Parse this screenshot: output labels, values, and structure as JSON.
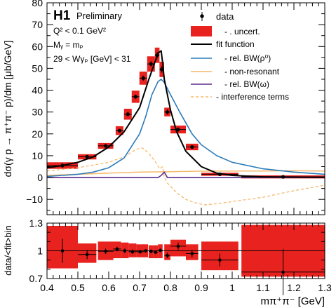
{
  "chart_data": [
    {
      "type": "line",
      "panel": "main",
      "title": "",
      "experiment": "H1",
      "status": "Preliminary",
      "annotations": [
        "Q² < 0.1 GeV²",
        "Mᵧ = mₚ",
        "29 < Wγₚ [GeV] < 31"
      ],
      "ylabel": "dσ(γ p → π⁺π⁻ p)/dm [μb/GeV]",
      "xlim": [
        0.4,
        1.3
      ],
      "ylim": [
        -17,
        80
      ],
      "yticks": [
        -10,
        0,
        10,
        20,
        30,
        40,
        50,
        60,
        70,
        80
      ],
      "legend": {
        "placement": "top-right",
        "entries": [
          {
            "label": "data",
            "style": "marker"
          },
          {
            "label": "- . uncert.",
            "style": "box",
            "color": "#e8231f"
          },
          {
            "label": "fit function",
            "style": "line",
            "color": "#000000"
          },
          {
            "label": "- rel. BW(ρ⁰)",
            "style": "line",
            "color": "#2b7bb9"
          },
          {
            "label": "- non-resonant",
            "style": "line",
            "color": "#f5b86a"
          },
          {
            "label": "- rel. BW(ω)",
            "style": "line",
            "color": "#5b2d8e"
          },
          {
            "label": "- interference terms",
            "style": "dashed",
            "color": "#f5b86a"
          }
        ]
      },
      "data_points": [
        {
          "x": 0.45,
          "y": 5.5,
          "xerr": 0.05,
          "yerr": 1.0,
          "sys": 1.5
        },
        {
          "x": 0.53,
          "y": 9.5,
          "xerr": 0.03,
          "yerr": 0.8,
          "sys": 1.2
        },
        {
          "x": 0.59,
          "y": 14.5,
          "xerr": 0.025,
          "yerr": 0.7,
          "sys": 1.3
        },
        {
          "x": 0.635,
          "y": 21.5,
          "xerr": 0.0125,
          "yerr": 0.8,
          "sys": 2.0
        },
        {
          "x": 0.662,
          "y": 29.0,
          "xerr": 0.0125,
          "yerr": 1.0,
          "sys": 2.5
        },
        {
          "x": 0.687,
          "y": 37.0,
          "xerr": 0.0125,
          "yerr": 1.0,
          "sys": 2.8
        },
        {
          "x": 0.712,
          "y": 45.5,
          "xerr": 0.0125,
          "yerr": 1.2,
          "sys": 3.0
        },
        {
          "x": 0.737,
          "y": 52.0,
          "xerr": 0.0125,
          "yerr": 1.3,
          "sys": 3.5
        },
        {
          "x": 0.757,
          "y": 56.0,
          "xerr": 0.0075,
          "yerr": 1.5,
          "sys": 3.5
        },
        {
          "x": 0.772,
          "y": 49.5,
          "xerr": 0.0075,
          "yerr": 1.5,
          "sys": 3.5
        },
        {
          "x": 0.79,
          "y": 30.0,
          "xerr": 0.01,
          "yerr": 1.2,
          "sys": 2.0
        },
        {
          "x": 0.825,
          "y": 22.0,
          "xerr": 0.025,
          "yerr": 1.0,
          "sys": 1.8
        },
        {
          "x": 0.87,
          "y": 14.0,
          "xerr": 0.02,
          "yerr": 0.8,
          "sys": 1.5
        },
        {
          "x": 0.96,
          "y": 1.5,
          "xerr": 0.06,
          "yerr": 0.5,
          "sys": 0.7
        },
        {
          "x": 1.165,
          "y": 0.3,
          "xerr": 0.135,
          "yerr": 0.4,
          "sys": 0.7
        }
      ],
      "curves": {
        "fit_function": {
          "x": [
            0.4,
            0.45,
            0.5,
            0.55,
            0.6,
            0.65,
            0.7,
            0.73,
            0.75,
            0.76,
            0.77,
            0.775,
            0.78,
            0.79,
            0.8,
            0.82,
            0.85,
            0.9,
            0.95,
            1.0,
            1.1,
            1.2,
            1.3
          ],
          "y": [
            4.5,
            5.5,
            7.0,
            9.5,
            14.0,
            21.0,
            32.0,
            45.0,
            53.0,
            57.0,
            58.0,
            52.0,
            45.0,
            38.0,
            31.0,
            21.0,
            12.0,
            5.0,
            2.0,
            1.0,
            0.3,
            0.2,
            0.1
          ]
        },
        "rel_bw_rho0": {
          "x": [
            0.4,
            0.45,
            0.5,
            0.55,
            0.6,
            0.65,
            0.7,
            0.72,
            0.74,
            0.76,
            0.77,
            0.78,
            0.8,
            0.83,
            0.87,
            0.9,
            0.95,
            1.0,
            1.1,
            1.2,
            1.3
          ],
          "y": [
            0.5,
            1.0,
            1.5,
            2.5,
            4.5,
            9.0,
            20.0,
            28.0,
            38.0,
            44.0,
            45.0,
            43.5,
            38.0,
            30.0,
            20.0,
            15.0,
            10.0,
            7.0,
            4.0,
            2.5,
            1.5
          ]
        },
        "non_resonant": {
          "x": [
            0.4,
            0.5,
            0.6,
            0.7,
            0.8,
            0.9,
            1.0,
            1.1,
            1.2,
            1.3
          ],
          "y": [
            1.0,
            1.5,
            2.0,
            2.5,
            2.7,
            2.9,
            3.0,
            3.0,
            3.1,
            3.0
          ]
        },
        "rel_bw_omega": {
          "x": [
            0.4,
            0.76,
            0.77,
            0.78,
            0.79,
            1.3
          ],
          "y": [
            0.0,
            0.0,
            1.0,
            2.5,
            0.0,
            0.0
          ]
        },
        "interference_terms": {
          "x": [
            0.4,
            0.5,
            0.6,
            0.65,
            0.69,
            0.71,
            0.73,
            0.75,
            0.765,
            0.775,
            0.78,
            0.79,
            0.8,
            0.82,
            0.85,
            0.88,
            0.91,
            0.95,
            1.0,
            1.1,
            1.2,
            1.3
          ],
          "y": [
            3.0,
            4.5,
            7.0,
            9.5,
            13.0,
            13.5,
            11.0,
            7.5,
            4.0,
            5.0,
            0.0,
            -2.5,
            -4.0,
            -7.0,
            -10.0,
            -11.5,
            -12.5,
            -12.0,
            -11.0,
            -9.0,
            -6.0,
            -3.5
          ]
        }
      }
    },
    {
      "type": "scatter",
      "panel": "ratio",
      "xlabel": "mπ⁺π⁻ [GeV]",
      "ylabel": "data/<fit>bin",
      "xlim": [
        0.4,
        1.3
      ],
      "ylim": [
        0.7,
        1.3
      ],
      "yticks": [
        0.7,
        1,
        1.3
      ],
      "xticks": [
        0.4,
        0.5,
        0.6,
        0.7,
        0.8,
        0.9,
        1,
        1.1,
        1.2,
        1.3
      ],
      "reference_line": 1,
      "points": [
        {
          "x": 0.45,
          "y": 1.0,
          "xerr": 0.05,
          "yerr": 0.13,
          "band": [
            0.81,
            1.27
          ]
        },
        {
          "x": 0.53,
          "y": 0.96,
          "xerr": 0.03,
          "yerr": 0.05,
          "band": [
            0.87,
            1.08
          ]
        },
        {
          "x": 0.59,
          "y": 0.995,
          "xerr": 0.025,
          "yerr": 0.03,
          "band": [
            0.9,
            1.1
          ]
        },
        {
          "x": 0.627,
          "y": 1.02,
          "xerr": 0.0125,
          "yerr": 0.025,
          "band": [
            0.92,
            1.1
          ]
        },
        {
          "x": 0.652,
          "y": 1.0,
          "xerr": 0.0125,
          "yerr": 0.025,
          "band": [
            0.92,
            1.09
          ]
        },
        {
          "x": 0.677,
          "y": 0.99,
          "xerr": 0.0125,
          "yerr": 0.025,
          "band": [
            0.93,
            1.08
          ]
        },
        {
          "x": 0.702,
          "y": 0.99,
          "xerr": 0.0125,
          "yerr": 0.02,
          "band": [
            0.93,
            1.07
          ]
        },
        {
          "x": 0.72,
          "y": 1.0,
          "xerr": 0.0075,
          "yerr": 0.02,
          "band": [
            0.93,
            1.07
          ]
        },
        {
          "x": 0.737,
          "y": 0.995,
          "xerr": 0.0075,
          "yerr": 0.02,
          "band": [
            0.92,
            1.06
          ]
        },
        {
          "x": 0.752,
          "y": 0.985,
          "xerr": 0.0075,
          "yerr": 0.02,
          "band": [
            0.92,
            1.06
          ]
        },
        {
          "x": 0.767,
          "y": 1.005,
          "xerr": 0.0075,
          "yerr": 0.02,
          "band": [
            0.92,
            1.07
          ]
        },
        {
          "x": 0.79,
          "y": 0.95,
          "xerr": 0.01,
          "yerr": 0.03,
          "band": [
            0.9,
            1.07
          ]
        },
        {
          "x": 0.825,
          "y": 1.05,
          "xerr": 0.025,
          "yerr": 0.04,
          "band": [
            0.94,
            1.12
          ]
        },
        {
          "x": 0.87,
          "y": 0.97,
          "xerr": 0.02,
          "yerr": 0.04,
          "band": [
            0.9,
            1.07
          ]
        },
        {
          "x": 0.96,
          "y": 0.9,
          "xerr": 0.06,
          "yerr": 0.07,
          "band": [
            0.79,
            1.1
          ]
        },
        {
          "x": 1.165,
          "y": 0.77,
          "xerr": 0.135,
          "yerr": 0.25,
          "band": [
            0.72,
            1.28
          ]
        }
      ]
    }
  ]
}
